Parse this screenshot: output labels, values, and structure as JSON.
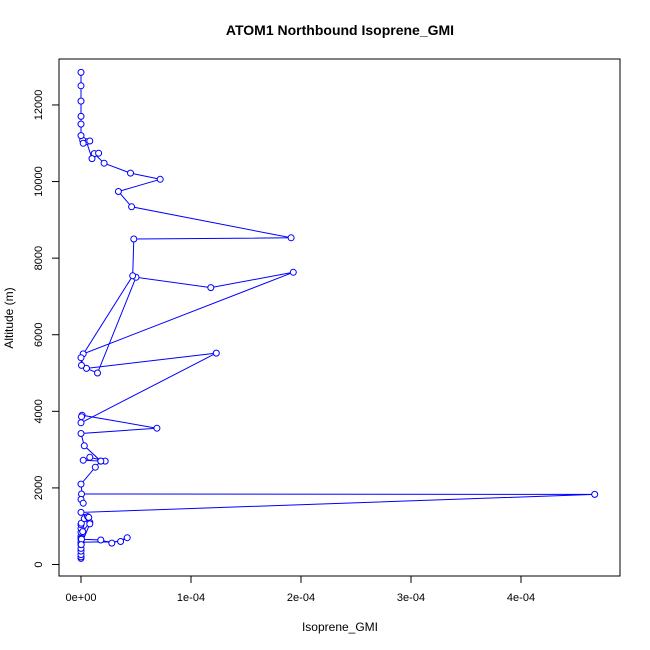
{
  "chart_data": {
    "type": "line",
    "title": "ATOM1 Northbound Isoprene_GMI",
    "xlabel": "Isoprene_GMI",
    "ylabel": "Altitude (m)",
    "xlim": [
      -2e-05,
      0.00049
    ],
    "ylim": [
      -300,
      13200
    ],
    "x_ticks": [
      0,
      0.0001,
      0.0002,
      0.0003,
      0.0004
    ],
    "x_tick_labels": [
      "0e+00",
      "1e-04",
      "2e-04",
      "3e-04",
      "4e-04"
    ],
    "y_ticks": [
      0,
      2000,
      4000,
      6000,
      8000,
      10000,
      12000
    ],
    "y_tick_labels": [
      "0",
      "2000",
      "4000",
      "6000",
      "8000",
      "10000",
      "12000"
    ],
    "grid": false,
    "series_color": "#0000ff",
    "series": [
      {
        "marker": "open-circle",
        "x": [
          0,
          0,
          0,
          0,
          0,
          0,
          0,
          0,
          0,
          0,
          0,
          0,
          3e-07,
          3e-06,
          6e-06,
          8e-06,
          1.5e-06,
          0,
          0,
          3.6e-05,
          4.2e-05,
          2.8e-05,
          1.8e-05,
          5e-07,
          2e-07,
          8e-06,
          7e-06,
          0,
          0.000467,
          5e-07,
          0,
          2e-06,
          0,
          1.3e-05,
          1.8e-05,
          2.2e-05,
          8e-06,
          2e-06,
          1.8e-05,
          3e-06,
          0,
          6.9e-05,
          1e-06,
          5e-07,
          0,
          0.000123,
          5e-06,
          1.5e-05,
          5e-05,
          0.000118,
          0.000193,
          2e-06,
          5e-07,
          0,
          4.7e-05,
          4.8e-05,
          0.000191,
          4.6e-05,
          3.4e-05,
          7.2e-05,
          4.5e-05,
          2.1e-05,
          1.2e-05,
          1.6e-05,
          1e-05,
          5e-06,
          1.5e-06,
          8e-06,
          2e-06,
          0,
          0,
          0,
          0,
          0,
          0
        ],
        "y": [
          160,
          200,
          260,
          350,
          420,
          520,
          580,
          660,
          740,
          840,
          940,
          1040,
          1080,
          1200,
          1250,
          1100,
          860,
          680,
          580,
          600,
          700,
          560,
          640,
          660,
          520,
          1060,
          1230,
          1360,
          1830,
          1840,
          1700,
          1600,
          2100,
          2540,
          2700,
          2700,
          2800,
          2720,
          2700,
          3100,
          3420,
          3560,
          3900,
          3860,
          3700,
          5520,
          5120,
          5000,
          7500,
          7230,
          7630,
          5500,
          5200,
          5400,
          7540,
          8500,
          8530,
          9340,
          9740,
          10060,
          10220,
          10480,
          10730,
          10740,
          10600,
          11040,
          11080,
          11060,
          11000,
          11200,
          11500,
          11700,
          12100,
          12500,
          12850
        ]
      }
    ]
  }
}
